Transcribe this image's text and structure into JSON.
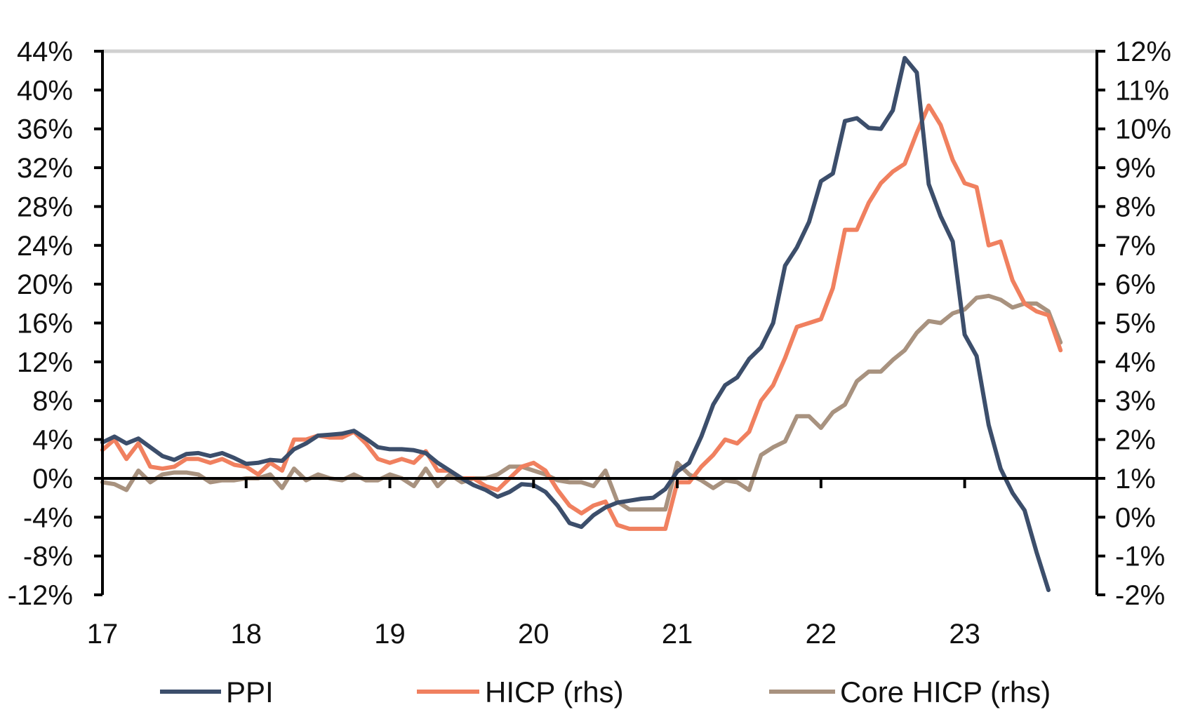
{
  "chart_data": {
    "type": "line",
    "title": "",
    "xlabel": "",
    "ylabel": "",
    "x_tick_labels": [
      "17",
      "18",
      "19",
      "20",
      "21",
      "22",
      "23"
    ],
    "x_range": [
      2017.0,
      2023.92
    ],
    "y_left": {
      "ylim": [
        -12,
        44
      ],
      "tick_labels": [
        "44%",
        "40%",
        "36%",
        "32%",
        "28%",
        "24%",
        "20%",
        "16%",
        "12%",
        "8%",
        "4%",
        "0%",
        "-4%",
        "-8%",
        "-12%"
      ]
    },
    "y_right": {
      "ylim": [
        -2,
        12
      ],
      "tick_labels": [
        "12%",
        "11%",
        "10%",
        "9%",
        "8%",
        "7%",
        "6%",
        "5%",
        "4%",
        "3%",
        "2%",
        "1%",
        "0%",
        "-1%",
        "-2%"
      ]
    },
    "grid": false,
    "legend_position": "bottom",
    "series": [
      {
        "name": "PPI",
        "axis": "left",
        "color": "#3c4e6b",
        "x": [
          2017.0,
          2017.083,
          2017.167,
          2017.25,
          2017.333,
          2017.417,
          2017.5,
          2017.583,
          2017.667,
          2017.75,
          2017.833,
          2017.917,
          2018.0,
          2018.083,
          2018.167,
          2018.25,
          2018.333,
          2018.417,
          2018.5,
          2018.583,
          2018.667,
          2018.75,
          2018.833,
          2018.917,
          2019.0,
          2019.083,
          2019.167,
          2019.25,
          2019.333,
          2019.417,
          2019.5,
          2019.583,
          2019.667,
          2019.75,
          2019.833,
          2019.917,
          2020.0,
          2020.083,
          2020.167,
          2020.25,
          2020.333,
          2020.417,
          2020.5,
          2020.583,
          2020.667,
          2020.75,
          2020.833,
          2020.917,
          2021.0,
          2021.083,
          2021.167,
          2021.25,
          2021.333,
          2021.417,
          2021.5,
          2021.583,
          2021.667,
          2021.75,
          2021.833,
          2021.917,
          2022.0,
          2022.083,
          2022.167,
          2022.25,
          2022.333,
          2022.417,
          2022.5,
          2022.583,
          2022.667,
          2022.75,
          2022.833,
          2022.917,
          2023.0,
          2023.083,
          2023.167,
          2023.25,
          2023.333,
          2023.417,
          2023.5,
          2023.583
        ],
        "values": [
          3.7,
          4.3,
          3.6,
          4.1,
          3.2,
          2.3,
          1.9,
          2.5,
          2.6,
          2.3,
          2.6,
          2.1,
          1.5,
          1.6,
          1.9,
          1.8,
          3.0,
          3.6,
          4.4,
          4.5,
          4.6,
          4.9,
          4.1,
          3.2,
          3.0,
          3.0,
          2.9,
          2.6,
          1.6,
          0.8,
          0.0,
          -0.7,
          -1.2,
          -1.9,
          -1.4,
          -0.6,
          -0.7,
          -1.4,
          -2.8,
          -4.6,
          -5.0,
          -3.8,
          -3.0,
          -2.5,
          -2.3,
          -2.1,
          -2.0,
          -1.1,
          0.7,
          1.6,
          4.3,
          7.6,
          9.6,
          10.4,
          12.3,
          13.5,
          16.0,
          21.9,
          23.8,
          26.4,
          30.6,
          31.4,
          36.8,
          37.1,
          36.1,
          36.0,
          37.9,
          43.3,
          41.8,
          30.3,
          27.0,
          24.4,
          14.8,
          12.6,
          5.5,
          1.0,
          -1.5,
          -3.3,
          -7.6,
          -11.5
        ]
      },
      {
        "name": "HICP (rhs)",
        "axis": "right",
        "color": "#f0805f",
        "x": [
          2017.0,
          2017.083,
          2017.167,
          2017.25,
          2017.333,
          2017.417,
          2017.5,
          2017.583,
          2017.667,
          2017.75,
          2017.833,
          2017.917,
          2018.0,
          2018.083,
          2018.167,
          2018.25,
          2018.333,
          2018.417,
          2018.5,
          2018.583,
          2018.667,
          2018.75,
          2018.833,
          2018.917,
          2019.0,
          2019.083,
          2019.167,
          2019.25,
          2019.333,
          2019.417,
          2019.5,
          2019.583,
          2019.667,
          2019.75,
          2019.833,
          2019.917,
          2020.0,
          2020.083,
          2020.167,
          2020.25,
          2020.333,
          2020.417,
          2020.5,
          2020.583,
          2020.667,
          2020.75,
          2020.833,
          2020.917,
          2021.0,
          2021.083,
          2021.167,
          2021.25,
          2021.333,
          2021.417,
          2021.5,
          2021.583,
          2021.667,
          2021.75,
          2021.833,
          2021.917,
          2022.0,
          2022.083,
          2022.167,
          2022.25,
          2022.333,
          2022.417,
          2022.5,
          2022.583,
          2022.667,
          2022.75,
          2022.833,
          2022.917,
          2023.0,
          2023.083,
          2023.167,
          2023.25,
          2023.333,
          2023.417,
          2023.5,
          2023.583,
          2023.667
        ],
        "values": [
          1.73,
          2.0,
          1.5,
          1.9,
          1.3,
          1.25,
          1.3,
          1.5,
          1.5,
          1.4,
          1.5,
          1.35,
          1.3,
          1.1,
          1.4,
          1.2,
          2.0,
          2.0,
          2.1,
          2.05,
          2.05,
          2.2,
          1.9,
          1.5,
          1.4,
          1.5,
          1.4,
          1.7,
          1.2,
          1.2,
          1.0,
          1.0,
          0.8,
          0.7,
          1.0,
          1.3,
          1.4,
          1.2,
          0.7,
          0.3,
          0.1,
          0.3,
          0.4,
          -0.2,
          -0.3,
          -0.3,
          -0.3,
          -0.3,
          0.9,
          0.9,
          1.3,
          1.6,
          2.0,
          1.9,
          2.2,
          3.0,
          3.4,
          4.1,
          4.9,
          5.0,
          5.1,
          5.9,
          7.4,
          7.4,
          8.1,
          8.6,
          8.9,
          9.1,
          9.9,
          10.6,
          10.1,
          9.2,
          8.6,
          8.5,
          7.0,
          7.1,
          6.1,
          5.5,
          5.3,
          5.2,
          4.3
        ]
      },
      {
        "name": "Core HICP (rhs)",
        "axis": "right",
        "color": "#a8927f",
        "x": [
          2017.0,
          2017.083,
          2017.167,
          2017.25,
          2017.333,
          2017.417,
          2017.5,
          2017.583,
          2017.667,
          2017.75,
          2017.833,
          2017.917,
          2018.0,
          2018.083,
          2018.167,
          2018.25,
          2018.333,
          2018.417,
          2018.5,
          2018.583,
          2018.667,
          2018.75,
          2018.833,
          2018.917,
          2019.0,
          2019.083,
          2019.167,
          2019.25,
          2019.333,
          2019.417,
          2019.5,
          2019.583,
          2019.667,
          2019.75,
          2019.833,
          2019.917,
          2020.0,
          2020.083,
          2020.167,
          2020.25,
          2020.333,
          2020.417,
          2020.5,
          2020.583,
          2020.667,
          2020.75,
          2020.833,
          2020.917,
          2021.0,
          2021.083,
          2021.167,
          2021.25,
          2021.333,
          2021.417,
          2021.5,
          2021.583,
          2021.667,
          2021.75,
          2021.833,
          2021.917,
          2022.0,
          2022.083,
          2022.167,
          2022.25,
          2022.333,
          2022.417,
          2022.5,
          2022.583,
          2022.667,
          2022.75,
          2022.833,
          2022.917,
          2023.0,
          2023.083,
          2023.167,
          2023.25,
          2023.333,
          2023.417,
          2023.5,
          2023.583,
          2023.667
        ],
        "values": [
          0.9,
          0.85,
          0.7,
          1.2,
          0.9,
          1.1,
          1.15,
          1.15,
          1.1,
          0.9,
          0.95,
          0.95,
          1.0,
          1.0,
          1.1,
          0.75,
          1.25,
          0.95,
          1.1,
          1.0,
          0.95,
          1.1,
          0.95,
          0.95,
          1.1,
          1.0,
          0.8,
          1.25,
          0.8,
          1.1,
          0.9,
          1.0,
          1.0,
          1.1,
          1.3,
          1.3,
          1.2,
          1.1,
          0.95,
          0.9,
          0.9,
          0.8,
          1.2,
          0.4,
          0.2,
          0.2,
          0.2,
          0.2,
          1.4,
          1.1,
          0.95,
          0.75,
          0.95,
          0.9,
          0.7,
          1.6,
          1.8,
          1.95,
          2.6,
          2.6,
          2.3,
          2.7,
          2.9,
          3.5,
          3.75,
          3.75,
          4.05,
          4.3,
          4.75,
          5.05,
          5.0,
          5.25,
          5.35,
          5.65,
          5.7,
          5.6,
          5.4,
          5.5,
          5.5,
          5.3,
          4.5
        ]
      }
    ]
  }
}
